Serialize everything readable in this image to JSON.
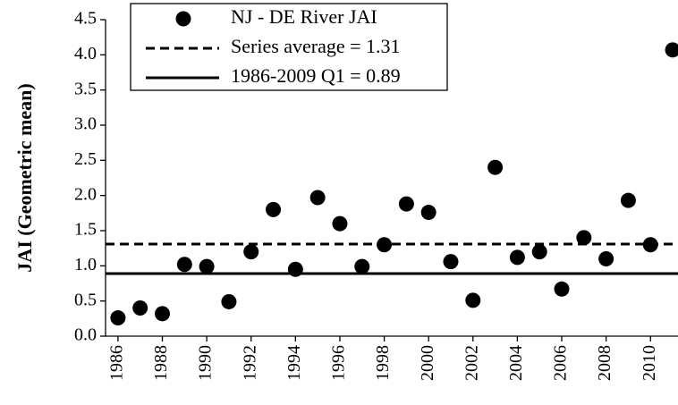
{
  "chart_data": {
    "type": "scatter",
    "y_label": "JAI (Geometric mean)",
    "x": [
      1986,
      1987,
      1988,
      1989,
      1990,
      1991,
      1992,
      1993,
      1994,
      1995,
      1996,
      1997,
      1998,
      1999,
      2000,
      2001,
      2002,
      2003,
      2004,
      2005,
      2006,
      2007,
      2008,
      2009,
      2010,
      2011
    ],
    "series": [
      {
        "name": "NJ - DE River JAI",
        "color": "#000000",
        "values": [
          0.26,
          0.4,
          0.32,
          1.02,
          0.99,
          0.49,
          1.2,
          1.8,
          0.95,
          1.97,
          1.6,
          0.99,
          1.3,
          1.88,
          1.76,
          1.06,
          0.51,
          2.4,
          1.12,
          1.2,
          0.67,
          1.4,
          1.1,
          1.93,
          1.3,
          4.07
        ]
      }
    ],
    "reference_lines": [
      {
        "name": "Series average = 1.31",
        "value": 1.31,
        "style": "dashed",
        "color": "#000000"
      },
      {
        "name": "1986-2009 Q1 = 0.89",
        "value": 0.89,
        "style": "solid",
        "color": "#000000"
      }
    ],
    "xlim": [
      1985.44,
      2011.24
    ],
    "xticks": [
      1986,
      1988,
      1990,
      1992,
      1994,
      1996,
      1998,
      2000,
      2002,
      2004,
      2006,
      2008,
      2010
    ],
    "ylim": [
      0,
      4.5
    ],
    "yticks": [
      {
        "value": 0,
        "label": "0.0"
      },
      0.5,
      {
        "value": 1,
        "label": "1.0"
      },
      1.5,
      {
        "value": 2,
        "label": "2.0"
      },
      2.5,
      {
        "value": 3,
        "label": "3.0"
      },
      3.5,
      {
        "value": 4,
        "label": "4.0"
      },
      4.5
    ],
    "grid": false,
    "legend": "top-left"
  }
}
